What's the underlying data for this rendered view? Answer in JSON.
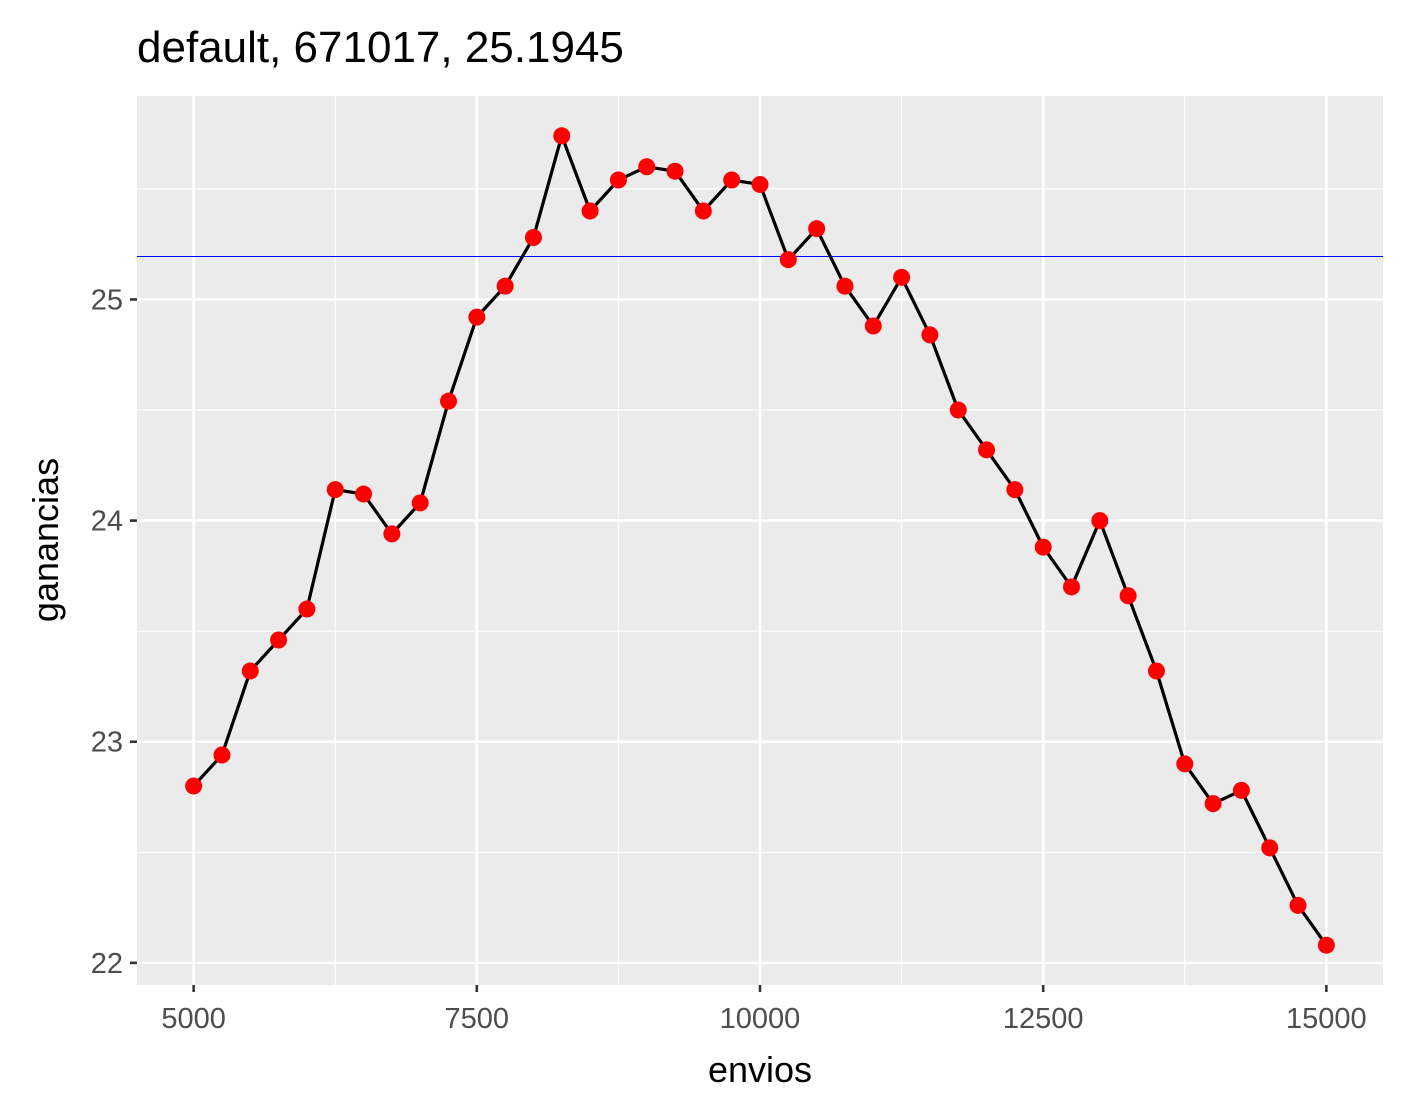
{
  "chart_data": {
    "type": "line",
    "title": "default, 671017, 25.1945",
    "xlabel": "envios",
    "ylabel": "ganancias",
    "xlim": [
      4500,
      15500
    ],
    "ylim": [
      21.9,
      25.92
    ],
    "x_ticks": [
      5000,
      7500,
      10000,
      12500,
      15000
    ],
    "x_tick_labels": [
      "5000",
      "7500",
      "10000",
      "12500",
      "15000"
    ],
    "y_ticks": [
      22,
      23,
      24,
      25
    ],
    "y_tick_labels": [
      "22",
      "23",
      "24",
      "25"
    ],
    "grid": true,
    "reference_line": {
      "y": 25.1945,
      "color": "#0000ff"
    },
    "colors": {
      "panel": "#ebebeb",
      "grid": "#ffffff",
      "line": "#000000",
      "point": "#ff0000",
      "tick": "#333333"
    },
    "series": [
      {
        "x": [
          5000,
          5250,
          5500,
          5750,
          6000,
          6250,
          6500,
          6750,
          7000,
          7250,
          7500,
          7750,
          8000,
          8250,
          8500,
          8750,
          9000,
          9250,
          9500,
          9750,
          10000,
          10250,
          10500,
          10750,
          11000,
          11250,
          11500,
          11750,
          12000,
          12250,
          12500,
          12750,
          13000,
          13250,
          13500,
          13750,
          14000,
          14250,
          14500,
          14750,
          15000
        ],
        "values": [
          22.8,
          22.94,
          23.32,
          23.46,
          23.6,
          24.14,
          24.12,
          23.94,
          24.08,
          24.54,
          24.92,
          25.06,
          25.28,
          25.74,
          25.4,
          25.54,
          25.6,
          25.58,
          25.4,
          25.54,
          25.52,
          25.18,
          25.32,
          25.06,
          24.88,
          25.1,
          24.84,
          24.5,
          24.32,
          24.14,
          23.88,
          23.7,
          24.0,
          23.66,
          23.32,
          22.9,
          22.72,
          22.78,
          22.52,
          22.26,
          22.08
        ]
      }
    ]
  }
}
